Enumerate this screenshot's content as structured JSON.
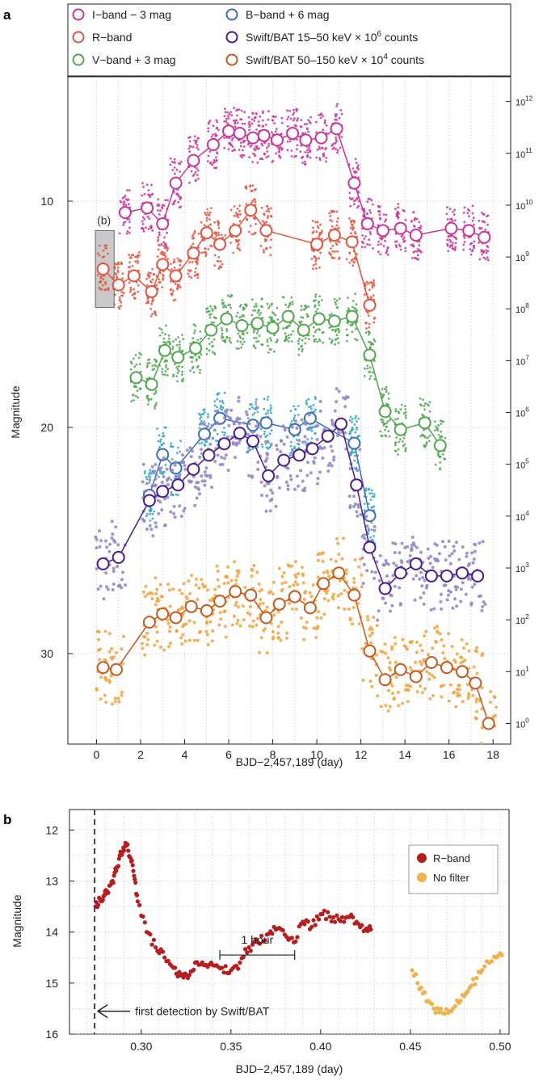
{
  "panel_a": {
    "label": "a",
    "xlabel": "BJD−2,457,189 (day)",
    "ylabel": "Magnitude",
    "x_ticks": [
      "0",
      "2",
      "4",
      "6",
      "8",
      "10",
      "12",
      "14",
      "16",
      "18"
    ],
    "y_ticks": [
      "10",
      "20",
      "30"
    ],
    "y2_ticks": [
      {
        "base": "10",
        "exp": "0"
      },
      {
        "base": "10",
        "exp": "1"
      },
      {
        "base": "10",
        "exp": "2"
      },
      {
        "base": "10",
        "exp": "3"
      },
      {
        "base": "10",
        "exp": "4"
      },
      {
        "base": "10",
        "exp": "5"
      },
      {
        "base": "10",
        "exp": "6"
      },
      {
        "base": "10",
        "exp": "7"
      },
      {
        "base": "10",
        "exp": "8"
      },
      {
        "base": "10",
        "exp": "9"
      },
      {
        "base": "10",
        "exp": "10"
      },
      {
        "base": "10",
        "exp": "11"
      },
      {
        "base": "10",
        "exp": "12"
      }
    ],
    "inset_label": "(b)",
    "legend": [
      {
        "name": "I−band − 3 mag"
      },
      {
        "name": "R−band"
      },
      {
        "name": "V−band + 3 mag"
      },
      {
        "name": "B−band + 6 mag"
      },
      {
        "name": "Swift/BAT 15–50 keV  × 10",
        "sup": "6",
        "tail": " counts"
      },
      {
        "name": "Swift/BAT 50–150 keV × 10",
        "sup": "4",
        "tail": " counts"
      }
    ]
  },
  "panel_b": {
    "label": "b",
    "xlabel": "BJD−2,457,189 (day)",
    "ylabel": "Magnitude",
    "x_ticks": [
      "0.30",
      "0.35",
      "0.40",
      "0.45",
      "0.50"
    ],
    "y_ticks": [
      "12",
      "13",
      "14",
      "15",
      "16"
    ],
    "scale_label": "1 hour",
    "annotation": "first detection by Swift/BAT",
    "legend": [
      {
        "name": "R−band"
      },
      {
        "name": "No filter"
      }
    ]
  },
  "colors": {
    "I": "#cc3399",
    "R": "#e5533c",
    "V": "#4ea84e",
    "B": "#2aa6c0",
    "B_line": "#3a6fb5",
    "BAT1": "#8c85c9",
    "BAT1_line": "#4b1a8c",
    "BAT2": "#f2a33a",
    "BAT2_line": "#c9581c",
    "b_R": "#b81c1c",
    "b_nofilter": "#f2b04a",
    "shade": "#c9c9c9"
  },
  "chart_data": [
    {
      "type": "scatter",
      "title": "",
      "xlabel": "BJD−2,457,189 (day)",
      "ylabel": "Magnitude",
      "xlim": [
        -1.3,
        18.8
      ],
      "ylim": [
        34.0,
        4.5
      ],
      "y2_scale": "log",
      "y2lim_counts": [
        0.4,
        3000000000000.0
      ],
      "grid": true,
      "legend_position": "top",
      "series": [
        {
          "name": "I−band − 3 mag",
          "axis": "magnitude",
          "x": [
            1.3,
            2.3,
            3.0,
            3.6,
            4.4,
            5.3,
            6.0,
            6.5,
            7.1,
            7.6,
            8.2,
            8.9,
            9.5,
            10.2,
            10.9,
            11.7,
            12.3,
            13.0,
            13.8,
            14.5,
            16.1,
            16.9,
            17.6
          ],
          "y": [
            10.5,
            10.3,
            11.0,
            9.2,
            8.2,
            7.5,
            6.9,
            7.0,
            7.2,
            7.1,
            7.3,
            7.0,
            7.3,
            7.2,
            6.8,
            9.2,
            11.0,
            11.3,
            11.2,
            11.5,
            11.2,
            11.3,
            11.6
          ]
        },
        {
          "name": "R−band",
          "axis": "magnitude",
          "x": [
            0.3,
            1.0,
            1.7,
            2.5,
            3.0,
            3.6,
            4.4,
            5.0,
            5.6,
            6.3,
            7.0,
            7.7,
            10.0,
            10.8,
            11.6,
            12.4
          ],
          "y": [
            13.0,
            13.7,
            13.3,
            14.0,
            12.8,
            13.3,
            12.3,
            11.4,
            11.9,
            11.3,
            10.4,
            11.3,
            11.9,
            11.5,
            11.8,
            14.6
          ]
        },
        {
          "name": "V−band + 3 mag",
          "axis": "magnitude",
          "x": [
            1.8,
            2.5,
            3.1,
            3.7,
            4.5,
            5.2,
            5.9,
            6.6,
            7.3,
            8.0,
            8.7,
            9.4,
            10.1,
            10.8,
            11.6,
            12.4,
            13.1,
            13.8,
            14.9,
            15.6
          ],
          "y": [
            17.8,
            18.1,
            16.6,
            16.9,
            16.5,
            15.7,
            15.2,
            15.5,
            15.4,
            15.6,
            15.1,
            15.7,
            15.2,
            15.3,
            15.1,
            16.8,
            19.3,
            20.1,
            19.8,
            20.8
          ]
        },
        {
          "name": "B−band + 6 mag",
          "axis": "magnitude",
          "x": [
            2.4,
            3.0,
            3.6,
            4.9,
            5.6,
            7.1,
            7.7,
            9.0,
            9.7,
            11.7,
            12.4
          ],
          "y": [
            23.0,
            21.2,
            21.8,
            20.3,
            19.6,
            19.9,
            19.8,
            20.1,
            19.6,
            20.7,
            23.9
          ]
        },
        {
          "name": "Swift/BAT 15–50 keV × 10^6 counts",
          "axis": "counts",
          "x": [
            0.3,
            1.0,
            2.4,
            3.0,
            3.7,
            4.4,
            5.1,
            5.8,
            6.5,
            7.1,
            7.8,
            8.5,
            9.2,
            9.8,
            10.5,
            11.1,
            11.8,
            12.4,
            13.1,
            13.8,
            14.5,
            15.2,
            15.9,
            16.6,
            17.3
          ],
          "y": [
            1200,
            1600,
            20000,
            30000,
            40000,
            80000,
            150000,
            250000,
            400000,
            280000,
            60000,
            120000,
            150000,
            200000,
            350000,
            600000,
            40000,
            2500,
            400,
            800,
            1200,
            700,
            700,
            800,
            700
          ]
        },
        {
          "name": "Swift/BAT 50–150 keV × 10^4 counts",
          "axis": "counts",
          "x": [
            0.3,
            0.9,
            2.4,
            3.0,
            3.6,
            4.3,
            5.0,
            5.6,
            6.3,
            7.0,
            7.7,
            8.3,
            9.0,
            9.7,
            10.3,
            11.0,
            11.7,
            12.4,
            13.1,
            13.8,
            14.5,
            15.2,
            15.9,
            16.6,
            17.2,
            17.8
          ],
          "y": [
            12,
            11,
            90,
            130,
            110,
            180,
            150,
            230,
            350,
            300,
            110,
            200,
            280,
            170,
            500,
            800,
            300,
            25,
            7,
            11,
            8,
            15,
            12,
            10,
            6,
            1
          ]
        }
      ]
    },
    {
      "type": "scatter",
      "title": "",
      "xlabel": "BJD−2,457,189 (day)",
      "ylabel": "Magnitude",
      "xlim": [
        0.26,
        0.505
      ],
      "ylim": [
        16.0,
        11.6
      ],
      "grid": true,
      "legend_position": "top-right",
      "markers": {
        "first_detection_x": 0.274,
        "one_hour_bar_x": [
          0.3438,
          0.3855
        ],
        "one_hour_bar_y": 14.45
      },
      "series": [
        {
          "name": "R−band",
          "x": [
            0.2745,
            0.277,
            0.279,
            0.281,
            0.284,
            0.286,
            0.288,
            0.29,
            0.292,
            0.294,
            0.296,
            0.298,
            0.303,
            0.308,
            0.313,
            0.318,
            0.322,
            0.326,
            0.33,
            0.335,
            0.34,
            0.345,
            0.35,
            0.355,
            0.36,
            0.365,
            0.37,
            0.375,
            0.38,
            0.385,
            0.39,
            0.395,
            0.4,
            0.405,
            0.41,
            0.415,
            0.42,
            0.425,
            0.428
          ],
          "y": [
            13.5,
            13.35,
            13.3,
            13.2,
            13.0,
            12.8,
            12.5,
            12.35,
            12.3,
            12.55,
            12.9,
            13.4,
            14.0,
            14.3,
            14.5,
            14.7,
            14.85,
            14.9,
            14.6,
            14.65,
            14.65,
            14.7,
            14.75,
            14.6,
            14.3,
            14.2,
            14.05,
            13.95,
            14.05,
            14.2,
            13.8,
            13.9,
            13.65,
            13.7,
            13.75,
            13.7,
            13.8,
            13.95,
            13.95
          ]
        },
        {
          "name": "No filter",
          "x": [
            0.451,
            0.454,
            0.457,
            0.46,
            0.463,
            0.466,
            0.469,
            0.472,
            0.475,
            0.478,
            0.481,
            0.484,
            0.487,
            0.49,
            0.494,
            0.498,
            0.501
          ],
          "y": [
            14.75,
            15.0,
            15.2,
            15.35,
            15.5,
            15.57,
            15.6,
            15.55,
            15.45,
            15.35,
            15.2,
            15.05,
            14.9,
            14.75,
            14.6,
            14.5,
            14.45
          ]
        }
      ]
    }
  ]
}
